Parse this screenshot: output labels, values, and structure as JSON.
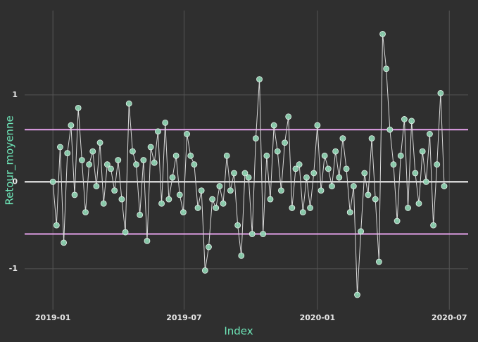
{
  "chart_data": {
    "type": "line",
    "x_label": "Index",
    "y_label": "Retour_moyenne",
    "x": [
      "2019-01-01",
      "2019-01-06",
      "2019-01-11",
      "2019-01-16",
      "2019-01-21",
      "2019-01-26",
      "2019-01-31",
      "2019-02-05",
      "2019-02-10",
      "2019-02-15",
      "2019-02-20",
      "2019-02-25",
      "2019-03-02",
      "2019-03-07",
      "2019-03-12",
      "2019-03-17",
      "2019-03-22",
      "2019-03-27",
      "2019-04-01",
      "2019-04-06",
      "2019-04-11",
      "2019-04-16",
      "2019-04-21",
      "2019-04-26",
      "2019-05-01",
      "2019-05-06",
      "2019-05-11",
      "2019-05-16",
      "2019-05-21",
      "2019-05-26",
      "2019-05-31",
      "2019-06-05",
      "2019-06-10",
      "2019-06-15",
      "2019-06-20",
      "2019-06-25",
      "2019-06-30",
      "2019-07-05",
      "2019-07-10",
      "2019-07-15",
      "2019-07-20",
      "2019-07-25",
      "2019-07-30",
      "2019-08-04",
      "2019-08-09",
      "2019-08-14",
      "2019-08-19",
      "2019-08-24",
      "2019-08-29",
      "2019-09-03",
      "2019-09-08",
      "2019-09-13",
      "2019-09-18",
      "2019-09-23",
      "2019-09-28",
      "2019-10-03",
      "2019-10-08",
      "2019-10-13",
      "2019-10-18",
      "2019-10-23",
      "2019-10-28",
      "2019-11-02",
      "2019-11-07",
      "2019-11-12",
      "2019-11-17",
      "2019-11-22",
      "2019-11-27",
      "2019-12-02",
      "2019-12-07",
      "2019-12-12",
      "2019-12-17",
      "2019-12-22",
      "2019-12-27",
      "2020-01-01",
      "2020-01-06",
      "2020-01-11",
      "2020-01-16",
      "2020-01-21",
      "2020-01-26",
      "2020-01-31",
      "2020-02-05",
      "2020-02-10",
      "2020-02-15",
      "2020-02-20",
      "2020-02-25",
      "2020-03-01",
      "2020-03-06",
      "2020-03-11",
      "2020-03-16",
      "2020-03-21",
      "2020-03-26",
      "2020-03-31",
      "2020-04-05",
      "2020-04-10",
      "2020-04-15",
      "2020-04-20",
      "2020-04-25",
      "2020-04-30",
      "2020-05-05",
      "2020-05-10",
      "2020-05-15",
      "2020-05-20",
      "2020-05-25",
      "2020-05-30",
      "2020-06-04",
      "2020-06-09",
      "2020-06-14",
      "2020-06-19",
      "2020-06-24"
    ],
    "series": [
      {
        "name": "Retour_moyenne",
        "color": "#8fd6b4",
        "line_color": "#d9d9d9",
        "values": [
          0,
          -0.5,
          0.4,
          -0.7,
          0.33,
          0.65,
          -0.15,
          0.85,
          0.25,
          -0.35,
          0.2,
          0.35,
          -0.05,
          0.45,
          -0.25,
          0.2,
          0.15,
          -0.1,
          0.25,
          -0.2,
          -0.58,
          0.9,
          0.35,
          0.2,
          -0.38,
          0.25,
          -0.68,
          0.4,
          0.22,
          0.58,
          -0.25,
          0.68,
          -0.2,
          0.05,
          0.3,
          -0.15,
          -0.35,
          0.55,
          0.3,
          0.2,
          -0.3,
          -0.1,
          -1.02,
          -0.75,
          -0.2,
          -0.3,
          -0.05,
          -0.25,
          0.3,
          -0.1,
          0.1,
          -0.5,
          -0.85,
          0.1,
          0.05,
          -0.6,
          0.5,
          1.18,
          -0.6,
          0.3,
          -0.2,
          0.65,
          0.35,
          -0.1,
          0.45,
          0.75,
          -0.3,
          0.15,
          0.2,
          -0.35,
          0.05,
          -0.3,
          0.1,
          0.65,
          -0.1,
          0.3,
          0.15,
          -0.05,
          0.35,
          0.05,
          0.5,
          0.15,
          -0.35,
          -0.05,
          -1.3,
          -0.57,
          0.1,
          -0.15,
          0.5,
          -0.2,
          -0.92,
          1.7,
          1.3,
          0.6,
          0.2,
          -0.45,
          0.3,
          0.72,
          -0.3,
          0.7,
          0.1,
          -0.25,
          0.35,
          0,
          0.55,
          -0.5,
          0.2,
          1.02,
          -0.05
        ]
      }
    ],
    "xlim": [
      "2018-11-23",
      "2020-07-27"
    ],
    "xticks": [
      {
        "value": "2019-01-01",
        "label": "2019-01"
      },
      {
        "value": "2019-07-01",
        "label": "2019-07"
      },
      {
        "value": "2020-01-01",
        "label": "2020-01"
      },
      {
        "value": "2020-07-01",
        "label": "2020-07"
      }
    ],
    "ylim": [
      -1.47,
      1.97
    ],
    "yticks": [
      -1,
      0,
      1
    ],
    "grid": true,
    "hlines": [
      {
        "value": 0.6,
        "color": "#e7a3ee"
      },
      {
        "value": 0,
        "color": "#ffffff"
      },
      {
        "value": -0.6,
        "color": "#e7a3ee"
      }
    ]
  }
}
